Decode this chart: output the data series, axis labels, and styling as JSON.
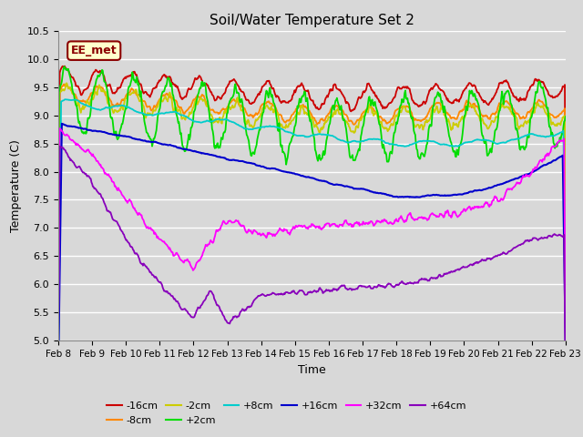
{
  "title": "Soil/Water Temperature Set 2",
  "xlabel": "Time",
  "ylabel": "Temperature (C)",
  "annotation": "EE_met",
  "ylim": [
    5.0,
    10.5
  ],
  "bg_color": "#d8d8d8",
  "series_colors": {
    "-16cm": "#cc0000",
    "-8cm": "#ff8800",
    "-2cm": "#cccc00",
    "+2cm": "#00dd00",
    "+8cm": "#00cccc",
    "+16cm": "#0000cc",
    "+32cm": "#ff00ff",
    "+64cm": "#8800bb"
  },
  "xtick_labels": [
    "Feb 8",
    "Feb 9",
    "Feb 10",
    "Feb 11",
    "Feb 12",
    "Feb 13",
    "Feb 14",
    "Feb 15",
    "Feb 16",
    "Feb 17",
    "Feb 18",
    "Feb 19",
    "Feb 20",
    "Feb 21",
    "Feb 22",
    "Feb 23"
  ],
  "n_points": 720
}
